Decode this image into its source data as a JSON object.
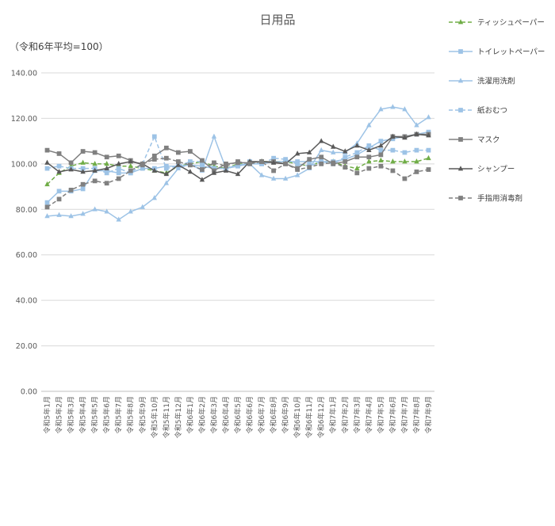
{
  "chart_data": {
    "type": "line",
    "title": "日用品",
    "subtitle": "（令和6年平均=100）",
    "ylim": [
      0,
      140
    ],
    "yticks": [
      "0.00",
      "20.00",
      "40.00",
      "60.00",
      "80.00",
      "100.00",
      "120.00",
      "140.00"
    ],
    "grid": true,
    "legend_position": "right",
    "categories": [
      "令和5年1月",
      "令和5年2月",
      "令和5年3月",
      "令和5年4月",
      "令和5年5月",
      "令和5年6月",
      "令和5年7月",
      "令和5年8月",
      "令和5年9月",
      "令和5年10月",
      "令和5年11月",
      "令和5年12月",
      "令和6年1月",
      "令和6年2月",
      "令和6年3月",
      "令和6年4月",
      "令和6年5月",
      "令和6年6月",
      "令和6年7月",
      "令和6年8月",
      "令和6年9月",
      "令和6年10月",
      "令和6年11月",
      "令和6年12月",
      "令和7年1月",
      "令和7年2月",
      "令和7年3月",
      "令和7年4月",
      "令和7年5月",
      "令和7年6月",
      "令和7年7月",
      "令和7年8月",
      "令和7年9月"
    ],
    "series": [
      {
        "name": "ティッシュペーパー",
        "color": "#70AD47",
        "dash": true,
        "marker": "triangle",
        "values": [
          91,
          96,
          99,
          100.5,
          100,
          100,
          99,
          99,
          98,
          97,
          96,
          99,
          100,
          101,
          99,
          98,
          100,
          100,
          101,
          101,
          101,
          100,
          99,
          101,
          101,
          99,
          98,
          101,
          101.5,
          101,
          101,
          101,
          102.5
        ]
      },
      {
        "name": "トイレットペーパー",
        "color": "#9DC3E6",
        "dash": false,
        "marker": "square",
        "values": [
          83,
          88,
          88,
          89,
          97,
          97,
          96,
          96,
          98,
          98,
          99,
          99,
          99.5,
          99,
          98,
          98,
          99.5,
          100,
          100,
          101,
          101,
          101,
          101,
          101,
          101,
          102,
          104,
          107,
          110,
          111,
          112,
          113,
          114
        ]
      },
      {
        "name": "洗濯用洗剤",
        "color": "#9DC3E6",
        "dash": false,
        "marker": "triangle",
        "values": [
          77,
          77.5,
          77,
          78,
          80,
          79,
          75.5,
          79,
          81,
          85,
          91.5,
          98,
          100,
          97,
          112,
          98,
          99,
          100,
          95,
          93.5,
          93.5,
          95,
          98,
          106,
          105,
          105,
          109,
          117,
          124,
          125,
          124,
          117,
          120.5
        ]
      },
      {
        "name": "紙おむつ",
        "color": "#9DC3E6",
        "dash": true,
        "marker": "square",
        "values": [
          98,
          99,
          98,
          98,
          98,
          96,
          98,
          96,
          100,
          112,
          98,
          99,
          101,
          101,
          98,
          98,
          99,
          101,
          100,
          102.5,
          102,
          100,
          99,
          101,
          100,
          103,
          105,
          108,
          106,
          106,
          105,
          106,
          106
        ]
      },
      {
        "name": "マスク",
        "color": "#808080",
        "dash": false,
        "marker": "square",
        "values": [
          106,
          104.5,
          100.5,
          105.5,
          105,
          103,
          103.5,
          101.5,
          99.5,
          103.5,
          107,
          105,
          105.5,
          101.5,
          97,
          100,
          100.5,
          100.5,
          101,
          101,
          100,
          98,
          102,
          103,
          100,
          101,
          103,
          103,
          104,
          112,
          112,
          113,
          113
        ]
      },
      {
        "name": "シャンプー",
        "color": "#595959",
        "dash": false,
        "marker": "triangle",
        "values": [
          100.5,
          96.5,
          97.5,
          96.5,
          97,
          98,
          100,
          101,
          100,
          97,
          95.5,
          99.5,
          96.5,
          93,
          96,
          97,
          95.5,
          101,
          101,
          100.5,
          100,
          104.5,
          105,
          110,
          107.5,
          105.5,
          108,
          106,
          108,
          112,
          111.5,
          113,
          112.5
        ]
      },
      {
        "name": "手指用消毒剤",
        "color": "#808080",
        "dash": true,
        "marker": "square",
        "values": [
          81,
          84.5,
          88.5,
          91,
          92.5,
          91.5,
          93.5,
          97,
          100,
          102,
          102.5,
          101,
          99.5,
          97.5,
          100.5,
          99,
          101,
          100,
          101,
          97,
          100,
          97.5,
          98.5,
          100,
          100.5,
          98.5,
          96,
          98,
          99,
          97,
          93.5,
          96.5,
          97.5
        ]
      }
    ]
  }
}
